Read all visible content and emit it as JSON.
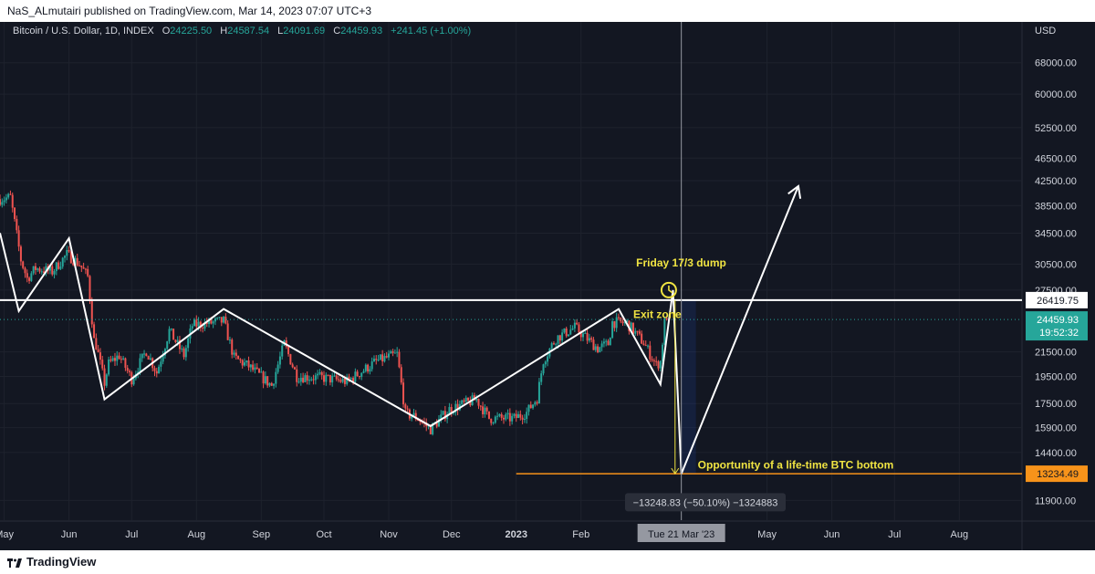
{
  "header": {
    "published": "NaS_ALmutairi published on TradingView.com, Mar 14, 2023 07:07 UTC+3"
  },
  "footer": {
    "brand": "TradingView"
  },
  "legend": {
    "symbol": "Bitcoin / U.S. Dollar, 1D, INDEX",
    "o_label": "O",
    "o": "24225.50",
    "h_label": "H",
    "h": "24587.54",
    "l_label": "L",
    "l": "24091.69",
    "c_label": "C",
    "c": "24459.93",
    "change": "+241.45 (+1.00%)"
  },
  "colors": {
    "bg": "#131722",
    "up": "#26a69a",
    "down": "#ef5350",
    "annotation": "#f0e442",
    "support": "#f7931a",
    "text": "#d1d4dc"
  },
  "chart_data": {
    "type": "candlestick",
    "title": "Bitcoin / U.S. Dollar, 1D, INDEX",
    "currency_label": "USD",
    "y_scale": "log",
    "ylim": [
      11000,
      80000
    ],
    "xlim": [
      "2022-04-29",
      "2023-08-31"
    ],
    "y_ticks": [
      68000,
      60000,
      52500,
      46500,
      42500,
      38500,
      34500,
      30500,
      27500,
      21500,
      19500,
      17500,
      15900,
      14400,
      11900
    ],
    "y_tick_labels": [
      "68000.00",
      "60000.00",
      "52500.00",
      "46500.00",
      "42500.00",
      "38500.00",
      "34500.00",
      "30500.00",
      "27500.00",
      "21500.00",
      "19500.00",
      "17500.00",
      "15900.00",
      "14400.00",
      "11900.00"
    ],
    "x_ticks": [
      {
        "date": "2022-05-01",
        "label": "May"
      },
      {
        "date": "2022-06-01",
        "label": "Jun"
      },
      {
        "date": "2022-07-01",
        "label": "Jul"
      },
      {
        "date": "2022-08-01",
        "label": "Aug"
      },
      {
        "date": "2022-09-01",
        "label": "Sep"
      },
      {
        "date": "2022-10-01",
        "label": "Oct"
      },
      {
        "date": "2022-11-01",
        "label": "Nov"
      },
      {
        "date": "2022-12-01",
        "label": "Dec"
      },
      {
        "date": "2023-01-01",
        "label": "2023"
      },
      {
        "date": "2023-02-01",
        "label": "Feb"
      },
      {
        "date": "2023-05-01",
        "label": "May"
      },
      {
        "date": "2023-06-01",
        "label": "Jun"
      },
      {
        "date": "2023-07-01",
        "label": "Jul"
      },
      {
        "date": "2023-08-01",
        "label": "Aug"
      }
    ],
    "price_path": [
      [
        "2022-04-29",
        39500
      ],
      [
        "2022-05-04",
        39800
      ],
      [
        "2022-05-06",
        36000
      ],
      [
        "2022-05-09",
        31000
      ],
      [
        "2022-05-12",
        28800
      ],
      [
        "2022-05-16",
        30000
      ],
      [
        "2022-05-24",
        29600
      ],
      [
        "2022-05-31",
        31700
      ],
      [
        "2022-06-06",
        30500
      ],
      [
        "2022-06-10",
        29000
      ],
      [
        "2022-06-13",
        22500
      ],
      [
        "2022-06-14",
        22100
      ],
      [
        "2022-06-18",
        19000
      ],
      [
        "2022-06-20",
        20500
      ],
      [
        "2022-06-25",
        21200
      ],
      [
        "2022-07-01",
        19300
      ],
      [
        "2022-07-08",
        21600
      ],
      [
        "2022-07-13",
        19800
      ],
      [
        "2022-07-19",
        23400
      ],
      [
        "2022-07-26",
        21200
      ],
      [
        "2022-07-30",
        23900
      ],
      [
        "2022-08-14",
        24300
      ],
      [
        "2022-08-19",
        21000
      ],
      [
        "2022-08-26",
        20300
      ],
      [
        "2022-09-06",
        18800
      ],
      [
        "2022-09-12",
        22200
      ],
      [
        "2022-09-18",
        19500
      ],
      [
        "2022-09-30",
        19400
      ],
      [
        "2022-10-12",
        19100
      ],
      [
        "2022-10-26",
        20700
      ],
      [
        "2022-11-05",
        21300
      ],
      [
        "2022-11-09",
        16800
      ],
      [
        "2022-11-14",
        16600
      ],
      [
        "2022-11-21",
        15800
      ],
      [
        "2022-11-30",
        17100
      ],
      [
        "2022-12-13",
        17800
      ],
      [
        "2022-12-19",
        16500
      ],
      [
        "2022-12-31",
        16500
      ],
      [
        "2023-01-06",
        16900
      ],
      [
        "2023-01-11",
        17900
      ],
      [
        "2023-01-14",
        20800
      ],
      [
        "2023-01-20",
        22700
      ],
      [
        "2023-01-29",
        23700
      ],
      [
        "2023-02-09",
        21800
      ],
      [
        "2023-02-14",
        22200
      ],
      [
        "2023-02-16",
        24200
      ],
      [
        "2023-02-23",
        24100
      ],
      [
        "2023-03-03",
        22300
      ],
      [
        "2023-03-09",
        20400
      ],
      [
        "2023-03-11",
        20700
      ],
      [
        "2023-03-13",
        24200
      ],
      [
        "2023-03-14",
        24459.93
      ]
    ],
    "drawings": {
      "zigzag_pattern": [
        [
          "2022-04-29",
          34500
        ],
        [
          "2022-05-08",
          25300
        ],
        [
          "2022-06-01",
          33800
        ],
        [
          "2022-06-18",
          17800
        ],
        [
          "2022-08-14",
          25500
        ],
        [
          "2022-11-21",
          16000
        ],
        [
          "2023-02-19",
          25500
        ],
        [
          "2023-03-11",
          18900
        ],
        [
          "2023-03-17",
          27500
        ],
        [
          "2023-03-21",
          13234.49
        ],
        [
          "2023-05-16",
          41600
        ]
      ],
      "resistance_line": {
        "value": 26419.75,
        "label": "26419.75"
      },
      "support_line": {
        "value": 13234.49,
        "label": "13234.49",
        "from": "2023-01-01"
      },
      "last_price": {
        "value": 24459.93,
        "label": "24459.93",
        "countdown": "19:52:32"
      },
      "vertical_cursor": {
        "date": "2023-03-21",
        "label": "Tue 21 Mar '23"
      },
      "measure": {
        "from": "2023-03-14",
        "to": "2023-03-21",
        "label": "−13248.83 (−50.10%) −1324883"
      },
      "annotations": [
        {
          "date": "2023-03-09",
          "value": 30200,
          "text": "Friday 17/3 dump"
        },
        {
          "date": "2023-02-26",
          "value": 24600,
          "text": "Exit zone"
        },
        {
          "date": "2023-03-21",
          "value": 13500,
          "text": "Opportunity of a life-time BTC bottom"
        }
      ]
    }
  }
}
